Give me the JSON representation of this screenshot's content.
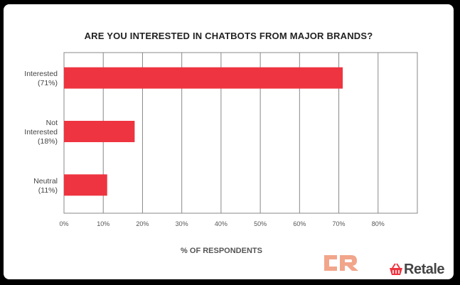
{
  "chart_data": {
    "type": "bar",
    "orientation": "horizontal",
    "title": "ARE YOU INTERESTED IN CHATBOTS FROM MAJOR BRANDS?",
    "xlabel": "% OF RESPONDENTS",
    "ylabel": "",
    "categories": [
      [
        "Interested",
        "(71%)"
      ],
      [
        "Not",
        "Interested",
        "(18%)"
      ],
      [
        "Neutral",
        "(11%)"
      ]
    ],
    "values": [
      71,
      18,
      11
    ],
    "xlim": [
      0,
      90
    ],
    "xticks": [
      "0%",
      "10%",
      "20%",
      "30%",
      "40%",
      "50%",
      "60%",
      "70%",
      "80%"
    ],
    "grid": true,
    "bar_color": "#ee3440"
  },
  "branding": {
    "cr_logo": "CR",
    "retale_logo": "Retale"
  }
}
